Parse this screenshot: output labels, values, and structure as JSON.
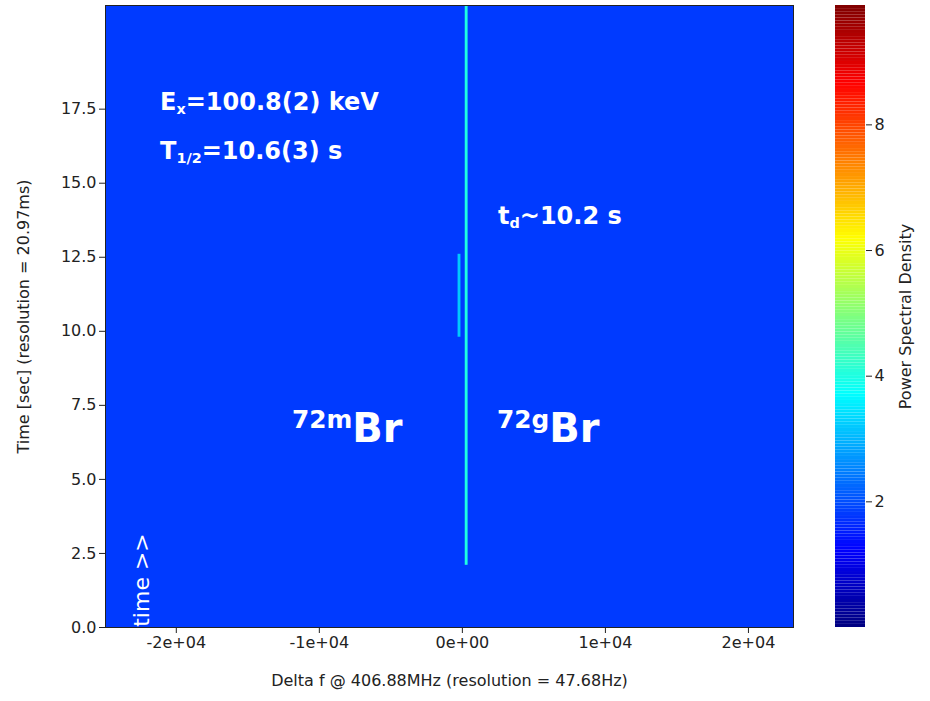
{
  "chart_data": {
    "type": "heatmap",
    "color": "jet",
    "x_label": "Delta f @ 406.88MHz (resolution = 47.68Hz)",
    "y_label": "Time [sec] (resolution = 20.97ms)",
    "xlim": [
      -24950,
      23150
    ],
    "ylim": [
      0,
      21
    ],
    "xticks": [
      {
        "value": -20000,
        "label": "-2e+04"
      },
      {
        "value": -10000,
        "label": "-1e+04"
      },
      {
        "value": 0,
        "label": "0e+00"
      },
      {
        "value": 10000,
        "label": "1e+04"
      },
      {
        "value": 20000,
        "label": "2e+04"
      }
    ],
    "yticks": [
      {
        "value": 0,
        "label": "0.0"
      },
      2.5,
      {
        "value": 5,
        "label": "5.0"
      },
      7.5,
      {
        "value": 10,
        "label": "10.0"
      },
      12.5,
      {
        "value": 15,
        "label": "15.0"
      },
      17.5
    ],
    "cells": [
      {
        "x1": -24950,
        "x2": 23150,
        "y1": 0,
        "y2": 21,
        "value": 1.8
      },
      {
        "x1": 200,
        "x2": 400,
        "y1": 2.1,
        "y2": 21,
        "value": 4.0
      },
      {
        "x1": -300,
        "x2": -100,
        "y1": 9.8,
        "y2": 12.6,
        "value": 3.2
      }
    ],
    "colorbar": {
      "label": "Power Spectral Density",
      "range": [
        0,
        9.9
      ],
      "ticks": [
        2,
        4,
        6,
        8
      ]
    },
    "annotations": [
      {
        "parts": [
          {
            "text": "E"
          },
          {
            "text": "x",
            "style": "sub"
          },
          {
            "text": "=100.8(2) keV"
          }
        ]
      },
      {
        "parts": [
          {
            "text": "T"
          },
          {
            "text": "1/2",
            "style": "sub"
          },
          {
            "text": "=10.6(3) s"
          }
        ]
      },
      {
        "parts": [
          {
            "text": "t"
          },
          {
            "text": "d",
            "style": "sub"
          },
          {
            "text": "~10.2 s"
          }
        ]
      },
      {
        "parts": [
          {
            "text": "72m",
            "style": "sup"
          },
          {
            "text": "Br"
          }
        ]
      },
      {
        "parts": [
          {
            "text": "72g",
            "style": "sup"
          },
          {
            "text": "Br"
          }
        ]
      },
      {
        "parts": [
          {
            "text": "time >>"
          }
        ]
      }
    ]
  }
}
